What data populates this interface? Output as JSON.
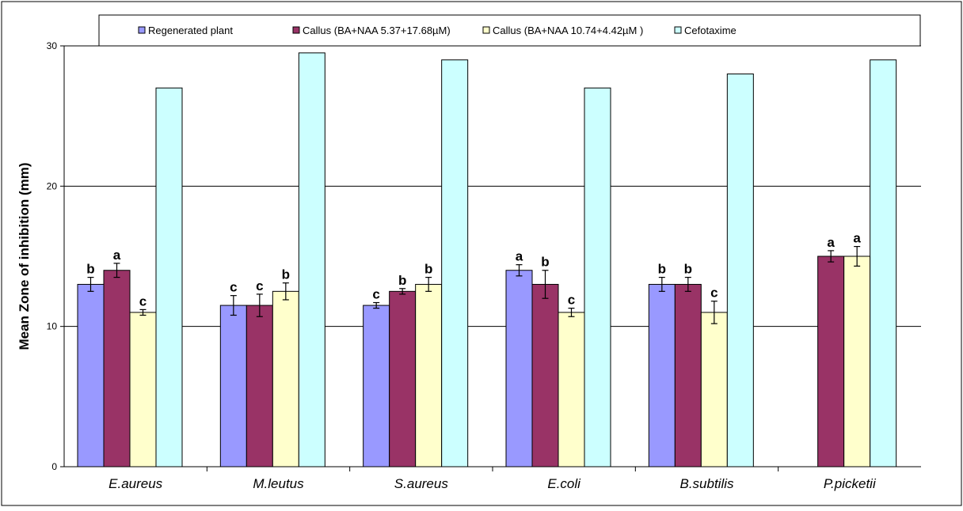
{
  "chart_data": {
    "type": "bar",
    "categories": [
      "E.aureus",
      "M.leutus",
      "S.aureus",
      "E.coli",
      "B.subtilis",
      "P.picketii"
    ],
    "ylabel": "Mean Zone of inhibition (mm)",
    "xlabel": "",
    "ylim": [
      0,
      30
    ],
    "yticks": [
      0,
      10,
      20,
      30
    ],
    "grid": true,
    "legend_position": "top",
    "series": [
      {
        "name": "Regenerated plant",
        "color": "#9999ff",
        "values": [
          13,
          11.5,
          11.5,
          14,
          13,
          null
        ],
        "errors": [
          0.5,
          0.7,
          0.2,
          0.4,
          0.5,
          null
        ],
        "labels": [
          "b",
          "c",
          "c",
          "a",
          "b",
          ""
        ]
      },
      {
        "name": "Callus (BA+NAA 5.37+17.68µM)",
        "color": "#993366",
        "values": [
          14,
          11.5,
          12.5,
          13,
          13,
          15
        ],
        "errors": [
          0.5,
          0.8,
          0.2,
          1.0,
          0.5,
          0.4
        ],
        "labels": [
          "a",
          "c",
          "b",
          "b",
          "b",
          "a"
        ]
      },
      {
        "name": "Callus (BA+NAA 10.74+4.42µM )",
        "color": "#ffffcc",
        "values": [
          11,
          12.5,
          13,
          11,
          11,
          15
        ],
        "errors": [
          0.2,
          0.6,
          0.5,
          0.3,
          0.8,
          0.7
        ],
        "labels": [
          "c",
          "b",
          "b",
          "c",
          "c",
          "a"
        ]
      },
      {
        "name": "Cefotaxime",
        "color": "#ccffff",
        "values": [
          27,
          29.5,
          29,
          27,
          28,
          29
        ],
        "errors": [
          null,
          null,
          null,
          null,
          null,
          null
        ],
        "labels": [
          "",
          "",
          "",
          "",
          "",
          ""
        ]
      }
    ]
  }
}
